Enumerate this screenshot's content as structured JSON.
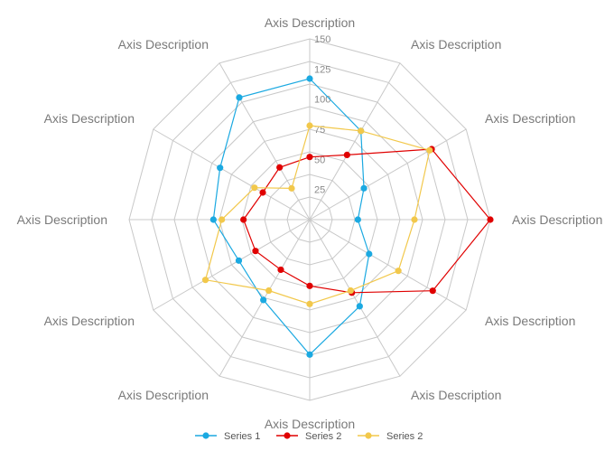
{
  "chart_data": {
    "type": "radar",
    "title": "",
    "axes": [
      "Axis Description",
      "Axis Description",
      "Axis Description",
      "Axis Description",
      "Axis Description",
      "Axis Description",
      "Axis Description",
      "Axis Description",
      "Axis Description",
      "Axis Description",
      "Axis Description",
      "Axis Description"
    ],
    "rlim": [
      0,
      150
    ],
    "ticks": [
      25,
      50,
      75,
      100,
      125,
      150
    ],
    "grid": true,
    "legend_position": "bottom",
    "series": [
      {
        "name": "Series 1",
        "color": "#1ba9e1",
        "values": [
          117,
          85,
          52,
          40,
          57,
          83,
          112,
          77,
          68,
          80,
          86,
          117
        ]
      },
      {
        "name": "Series 2",
        "color": "#e00000",
        "values": [
          52,
          62,
          117,
          150,
          118,
          70,
          55,
          48,
          52,
          55,
          45,
          50
        ]
      },
      {
        "name": "Series 2",
        "color": "#f2c84b",
        "values": [
          78,
          85,
          115,
          87,
          85,
          68,
          70,
          68,
          100,
          73,
          53,
          30
        ]
      }
    ]
  }
}
